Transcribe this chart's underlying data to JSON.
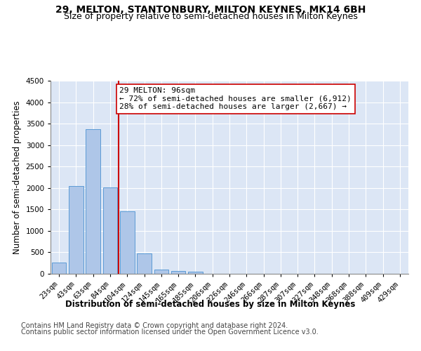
{
  "title": "29, MELTON, STANTONBURY, MILTON KEYNES, MK14 6BH",
  "subtitle": "Size of property relative to semi-detached houses in Milton Keynes",
  "xlabel": "Distribution of semi-detached houses by size in Milton Keynes",
  "ylabel": "Number of semi-detached properties",
  "footer1": "Contains HM Land Registry data © Crown copyright and database right 2024.",
  "footer2": "Contains public sector information licensed under the Open Government Licence v3.0.",
  "categories": [
    "23sqm",
    "43sqm",
    "63sqm",
    "84sqm",
    "104sqm",
    "124sqm",
    "145sqm",
    "165sqm",
    "185sqm",
    "206sqm",
    "226sqm",
    "246sqm",
    "266sqm",
    "287sqm",
    "307sqm",
    "327sqm",
    "348sqm",
    "368sqm",
    "388sqm",
    "409sqm",
    "429sqm"
  ],
  "values": [
    255,
    2040,
    3370,
    2020,
    1460,
    480,
    105,
    60,
    50,
    0,
    0,
    0,
    0,
    0,
    0,
    0,
    0,
    0,
    0,
    0,
    0
  ],
  "bar_color": "#aec6e8",
  "bar_edge_color": "#5b9bd5",
  "vline_index": 4,
  "vline_color": "#cc0000",
  "annotation_line1": "29 MELTON: 96sqm",
  "annotation_line2": "← 72% of semi-detached houses are smaller (6,912)",
  "annotation_line3": "28% of semi-detached houses are larger (2,667) →",
  "annotation_box_color": "#cc0000",
  "annotation_box_facecolor": "white",
  "ylim": [
    0,
    4500
  ],
  "yticks": [
    0,
    500,
    1000,
    1500,
    2000,
    2500,
    3000,
    3500,
    4000,
    4500
  ],
  "plot_bg_color": "#dce6f5",
  "title_fontsize": 10,
  "subtitle_fontsize": 9,
  "axis_label_fontsize": 8.5,
  "tick_fontsize": 7.5,
  "footer_fontsize": 7,
  "annotation_fontsize": 8
}
